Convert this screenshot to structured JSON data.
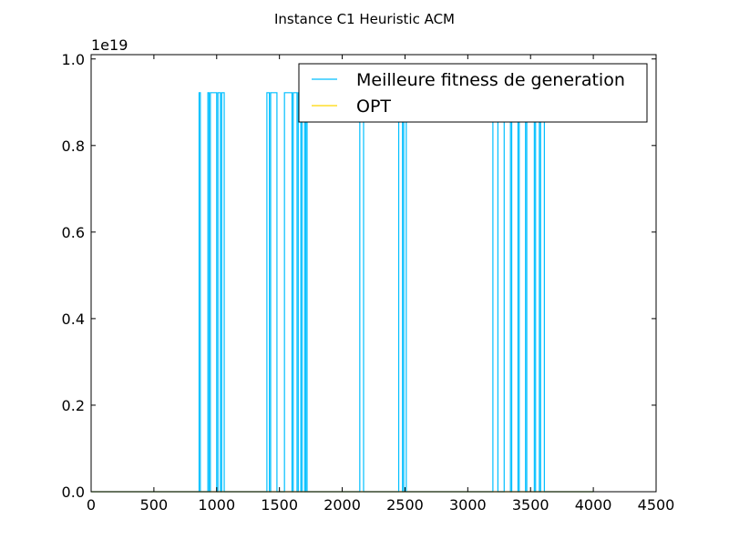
{
  "chart_data": {
    "type": "line",
    "title": "Instance C1 Heuristic ACM",
    "xlabel": "",
    "ylabel": "",
    "y_offset_label": "1e19",
    "xlim": [
      0,
      4500
    ],
    "ylim": [
      0,
      1.01
    ],
    "x_ticks": [
      0,
      500,
      1000,
      1500,
      2000,
      2500,
      3000,
      3500,
      4000,
      4500
    ],
    "x_tick_labels": [
      "0",
      "500",
      "1000",
      "1500",
      "2000",
      "2500",
      "3000",
      "3500",
      "4000",
      "4500"
    ],
    "y_ticks": [
      0.0,
      0.2,
      0.4,
      0.6,
      0.8,
      1.0
    ],
    "y_tick_labels": [
      "0.0",
      "0.2",
      "0.4",
      "0.6",
      "0.8",
      "1.0"
    ],
    "legend_position": "top-right",
    "grid": false,
    "series": [
      {
        "name": "Meilleure fitness de generation",
        "color": "#00bfff",
        "style": "step",
        "spikes": [
          [
            860,
            870,
            0.922
          ],
          [
            930,
            940,
            0.922
          ],
          [
            950,
            1000,
            0.922
          ],
          [
            1010,
            1030,
            0.922
          ],
          [
            1040,
            1060,
            0.922
          ],
          [
            1400,
            1420,
            0.922
          ],
          [
            1430,
            1480,
            0.922
          ],
          [
            1540,
            1600,
            0.922
          ],
          [
            1610,
            1640,
            0.922
          ],
          [
            1650,
            1670,
            0.922
          ],
          [
            1680,
            1700,
            0.922
          ],
          [
            1710,
            1720,
            0.922
          ],
          [
            2140,
            2170,
            0.922
          ],
          [
            2450,
            2480,
            0.922
          ],
          [
            2490,
            2510,
            0.922
          ],
          [
            3200,
            3240,
            0.922
          ],
          [
            3290,
            3340,
            0.922
          ],
          [
            3350,
            3400,
            0.922
          ],
          [
            3410,
            3460,
            0.922
          ],
          [
            3470,
            3530,
            0.922
          ],
          [
            3540,
            3570,
            0.922
          ],
          [
            3580,
            3610,
            0.922
          ]
        ],
        "x_end": 4000
      },
      {
        "name": "OPT",
        "color": "#ffd700",
        "style": "line",
        "x": [
          0,
          4000
        ],
        "y": [
          0,
          0
        ]
      }
    ]
  }
}
